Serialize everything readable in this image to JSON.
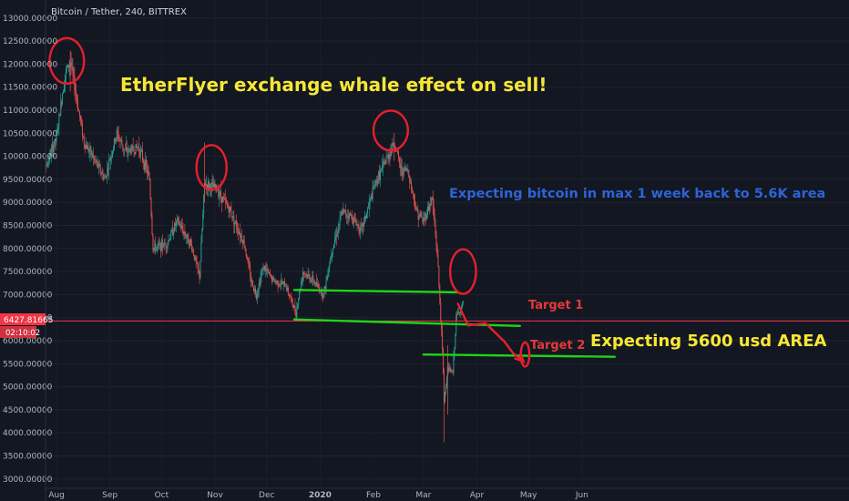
{
  "header": {
    "symbol": "Bitcoin / Tether, 240, BITTREX"
  },
  "colors": {
    "bg": "#131722",
    "up": "#26a69a",
    "down": "#ef5350",
    "price_line": "#f23645",
    "annot_red": "#e5202c",
    "annot_green": "#21d318",
    "annot_yellow": "#f7e734",
    "annot_blue": "#2e64d6"
  },
  "chart_data": {
    "type": "candlestick",
    "title": "Bitcoin / Tether, 240, BITTREX",
    "ylim": [
      3000,
      13000
    ],
    "y_ticks": [
      "3000.00000",
      "3500.00000",
      "4000.00000",
      "4500.00000",
      "5000.00000",
      "5500.00000",
      "6000.00000",
      "6500.00000",
      "7000.00000",
      "7500.00000",
      "8000.00000",
      "8500.00000",
      "9000.00000",
      "9500.00000",
      "10000.00000",
      "10500.00000",
      "11000.00000",
      "11500.00000",
      "12000.00000",
      "12500.00000",
      "13000.00000"
    ],
    "x_ticks": [
      "Aug",
      "Sep",
      "Oct",
      "Nov",
      "Dec",
      "2020",
      "Feb",
      "Mar",
      "Apr",
      "May",
      "Jun"
    ],
    "current_price": 6427.81665,
    "current_price_label": "6427.81665",
    "countdown_label": "02:10:02",
    "anchors": [
      [
        "2019-07-20",
        10000
      ],
      [
        "2019-07-24",
        9600
      ],
      [
        "2019-08-01",
        10400
      ],
      [
        "2019-08-06",
        11800
      ],
      [
        "2019-08-09",
        12050
      ],
      [
        "2019-08-13",
        11200
      ],
      [
        "2019-08-17",
        10300
      ],
      [
        "2019-08-22",
        10000
      ],
      [
        "2019-08-29",
        9500
      ],
      [
        "2019-09-05",
        10500
      ],
      [
        "2019-09-10",
        10100
      ],
      [
        "2019-09-18",
        10200
      ],
      [
        "2019-09-24",
        9500
      ],
      [
        "2019-09-26",
        8000
      ],
      [
        "2019-10-04",
        8100
      ],
      [
        "2019-10-10",
        8600
      ],
      [
        "2019-10-18",
        8100
      ],
      [
        "2019-10-23",
        7400
      ],
      [
        "2019-10-26",
        9400
      ],
      [
        "2019-11-02",
        9300
      ],
      [
        "2019-11-10",
        8800
      ],
      [
        "2019-11-18",
        8100
      ],
      [
        "2019-11-22",
        7300
      ],
      [
        "2019-11-25",
        7000
      ],
      [
        "2019-11-29",
        7600
      ],
      [
        "2019-12-05",
        7300
      ],
      [
        "2019-12-12",
        7200
      ],
      [
        "2019-12-18",
        6600
      ],
      [
        "2019-12-22",
        7500
      ],
      [
        "2019-12-28",
        7300
      ],
      [
        "2020-01-03",
        7000
      ],
      [
        "2020-01-08",
        8000
      ],
      [
        "2020-01-14",
        8800
      ],
      [
        "2020-01-19",
        8700
      ],
      [
        "2020-01-25",
        8400
      ],
      [
        "2020-02-02",
        9400
      ],
      [
        "2020-02-08",
        9900
      ],
      [
        "2020-02-13",
        10300
      ],
      [
        "2020-02-17",
        9700
      ],
      [
        "2020-02-21",
        9700
      ],
      [
        "2020-02-26",
        8800
      ],
      [
        "2020-03-01",
        8600
      ],
      [
        "2020-03-06",
        9100
      ],
      [
        "2020-03-09",
        7900
      ],
      [
        "2020-03-12",
        5800
      ],
      [
        "2020-03-13",
        4700
      ],
      [
        "2020-03-15",
        5400
      ],
      [
        "2020-03-18",
        5300
      ],
      [
        "2020-03-20",
        6500
      ],
      [
        "2020-03-24",
        6800
      ]
    ]
  },
  "annotations": {
    "title": "EtherFlyer exchange whale effect on sell!",
    "expect_week": "Expecting bitcoin in max 1 week back to 5.6K area",
    "target1": "Target 1",
    "target2": "Target 2",
    "expect_area": "Expecting 5600 usd AREA"
  },
  "drawings": {
    "green_lines": [
      {
        "from": [
          "2019-12-17",
          7100
        ],
        "to": [
          "2020-03-21",
          7050
        ]
      },
      {
        "from": [
          "2019-12-17",
          6460
        ],
        "to": [
          "2020-04-26",
          6320
        ]
      },
      {
        "from": [
          "2020-03-01",
          5700
        ],
        "to": [
          "2020-06-20",
          5650
        ]
      }
    ],
    "circles": [
      {
        "center": [
          "2019-08-07",
          12070
        ],
        "rx_days": 8,
        "ry_price": 470
      },
      {
        "center": [
          "2019-10-30",
          9760
        ],
        "rx_days": 7,
        "ry_price": 460
      },
      {
        "center": [
          "2020-02-11",
          10560
        ],
        "rx_days": 8,
        "ry_price": 410
      },
      {
        "center": [
          "2020-03-24",
          7500
        ],
        "rx_days": 6,
        "ry_price": 460
      },
      {
        "center": [
          "2020-04-29",
          5700
        ],
        "rx_days": 2,
        "ry_price": 250
      }
    ],
    "arrow_path": [
      [
        "2020-03-21",
        6800
      ],
      [
        "2020-03-27",
        6330
      ],
      [
        "2020-04-06",
        6380
      ],
      [
        "2020-04-17",
        5980
      ],
      [
        "2020-04-22",
        5730
      ],
      [
        "2020-04-28",
        5550
      ]
    ]
  }
}
